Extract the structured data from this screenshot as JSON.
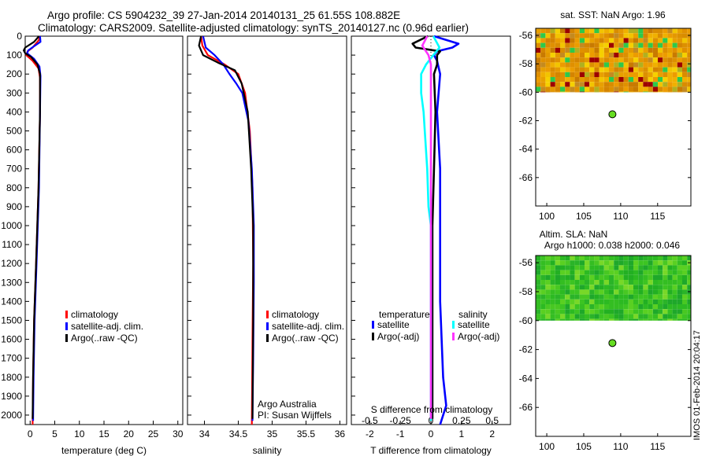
{
  "title_line1": "Argo profile: CS 5904232_39 27-Jan-2014 20140131_25 61.55S 108.882E",
  "title_line2": "Climatology: CARS2009. Satellite-adjusted climatology: synTS_20140127.nc (0.96d earlier)",
  "watermark": "IMOS 01-Feb-2014 20:04:17",
  "colors": {
    "climatology": "#ff0000",
    "satellite": "#0000ff",
    "argo": "#000000",
    "sal_satellite": "#00ffff",
    "sal_argo": "#ff33ff",
    "float_marker": "#66dd22"
  },
  "chart_data": [
    {
      "type": "line",
      "panel": "temperature",
      "xlabel": "temperature (deg C)",
      "xlim": [
        -1,
        31
      ],
      "xticks": [
        0,
        5,
        10,
        15,
        20,
        25,
        30
      ],
      "ylim": [
        0,
        2050
      ],
      "yticks": [
        0,
        100,
        200,
        300,
        400,
        500,
        600,
        700,
        800,
        900,
        1000,
        1100,
        1200,
        1300,
        1400,
        1500,
        1600,
        1700,
        1800,
        1900,
        2000
      ],
      "legend": [
        "climatology",
        "satellite-adj. clim.",
        "Argo(..raw -QC)"
      ],
      "series": [
        {
          "name": "climatology",
          "color": "#ff0000",
          "points": [
            [
              1.9,
              0
            ],
            [
              1.8,
              20
            ],
            [
              0.5,
              60
            ],
            [
              -0.5,
              80
            ],
            [
              -0.8,
              100
            ],
            [
              0.5,
              130
            ],
            [
              1.7,
              170
            ],
            [
              2.0,
              220
            ],
            [
              2.0,
              400
            ],
            [
              1.7,
              800
            ],
            [
              1.2,
              1200
            ],
            [
              0.8,
              1500
            ],
            [
              0.6,
              1800
            ],
            [
              0.5,
              2050
            ]
          ]
        },
        {
          "name": "satellite-adj. clim.",
          "color": "#0000ff",
          "points": [
            [
              2.0,
              0
            ],
            [
              2.1,
              30
            ],
            [
              0.4,
              60
            ],
            [
              -0.4,
              75
            ],
            [
              -0.6,
              90
            ],
            [
              0.8,
              120
            ],
            [
              1.9,
              160
            ],
            [
              2.1,
              210
            ],
            [
              2.0,
              400
            ],
            [
              1.8,
              800
            ],
            [
              1.3,
              1200
            ],
            [
              0.9,
              1500
            ],
            [
              0.7,
              1800
            ],
            [
              0.6,
              2030
            ]
          ]
        },
        {
          "name": "Argo(..raw -QC)",
          "color": "#000000",
          "points": [
            [
              1.8,
              0
            ],
            [
              0.8,
              30
            ],
            [
              -1.0,
              60
            ],
            [
              -1.3,
              75
            ],
            [
              -1.0,
              90
            ],
            [
              0.2,
              110
            ],
            [
              1.5,
              150
            ],
            [
              2.0,
              200
            ],
            [
              2.0,
              400
            ],
            [
              1.7,
              800
            ],
            [
              1.2,
              1200
            ],
            [
              0.8,
              1500
            ],
            [
              0.6,
              1800
            ],
            [
              0.5,
              2020
            ]
          ]
        }
      ]
    },
    {
      "type": "line",
      "panel": "salinity",
      "xlabel": "salinity",
      "xlim": [
        33.75,
        36.1
      ],
      "xticks": [
        34,
        34.5,
        35,
        35.5,
        36
      ],
      "ylim": [
        0,
        2050
      ],
      "legend": [
        "climatology",
        "satellite-adj. clim.",
        "Argo(..raw -QC)"
      ],
      "annotation": [
        "Argo Australia",
        "PI: Susan Wijffels"
      ],
      "series": [
        {
          "name": "climatology",
          "color": "#ff0000",
          "points": [
            [
              33.95,
              0
            ],
            [
              33.97,
              50
            ],
            [
              34.05,
              100
            ],
            [
              34.3,
              150
            ],
            [
              34.5,
              200
            ],
            [
              34.6,
              300
            ],
            [
              34.67,
              500
            ],
            [
              34.71,
              800
            ],
            [
              34.72,
              1200
            ],
            [
              34.71,
              1600
            ],
            [
              34.7,
              2050
            ]
          ]
        },
        {
          "name": "satellite-adj. clim.",
          "color": "#0000ff",
          "points": [
            [
              33.98,
              0
            ],
            [
              34.02,
              60
            ],
            [
              34.15,
              100
            ],
            [
              34.28,
              150
            ],
            [
              34.37,
              200
            ],
            [
              34.47,
              250
            ],
            [
              34.56,
              300
            ],
            [
              34.65,
              450
            ],
            [
              34.7,
              700
            ],
            [
              34.73,
              1000
            ],
            [
              34.73,
              1300
            ],
            [
              34.72,
              1700
            ],
            [
              34.71,
              2030
            ]
          ]
        },
        {
          "name": "Argo(..raw -QC)",
          "color": "#000000",
          "points": [
            [
              33.95,
              0
            ],
            [
              33.92,
              50
            ],
            [
              33.98,
              100
            ],
            [
              34.2,
              140
            ],
            [
              34.45,
              180
            ],
            [
              34.55,
              250
            ],
            [
              34.64,
              400
            ],
            [
              34.69,
              700
            ],
            [
              34.72,
              1000
            ],
            [
              34.72,
              1500
            ],
            [
              34.71,
              2020
            ]
          ]
        }
      ]
    },
    {
      "type": "line",
      "panel": "difference",
      "xlabel_bottom": "T difference from climatology",
      "xlabel_top": "S difference from climatology",
      "t_xlim": [
        -2.6,
        2.6
      ],
      "t_xticks": [
        -2,
        -1,
        0,
        1,
        2
      ],
      "s_xticks": [
        -0.5,
        -0.25,
        0,
        0.25,
        0.5
      ],
      "s_scale": 4,
      "ylim": [
        0,
        2050
      ],
      "legend_temperature_title": "temperature",
      "legend_salinity_title": "salinity",
      "legend_temperature": [
        "satellite",
        "Argo(-adj)"
      ],
      "legend_salinity": [
        "satellite",
        "Argo(-adj)"
      ],
      "series": [
        {
          "name": "T satellite",
          "color": "#0000ff",
          "points": [
            [
              0.1,
              0
            ],
            [
              0.9,
              40
            ],
            [
              0.7,
              60
            ],
            [
              0.2,
              80
            ],
            [
              0.1,
              100
            ],
            [
              0.2,
              130
            ],
            [
              0.3,
              200
            ],
            [
              0.2,
              400
            ],
            [
              0.3,
              700
            ],
            [
              0.3,
              1000
            ],
            [
              0.3,
              1400
            ],
            [
              0.4,
              1800
            ],
            [
              0.5,
              1950
            ],
            [
              0.3,
              2050
            ]
          ]
        },
        {
          "name": "T Argo(-adj)",
          "color": "#000000",
          "points": [
            [
              -0.1,
              0
            ],
            [
              -0.6,
              40
            ],
            [
              -0.5,
              60
            ],
            [
              0.3,
              80
            ],
            [
              0.2,
              100
            ],
            [
              0.2,
              150
            ],
            [
              0.1,
              200
            ],
            [
              0.15,
              400
            ],
            [
              0.1,
              700
            ],
            [
              0.05,
              1000
            ],
            [
              0.05,
              1400
            ],
            [
              0.05,
              1800
            ],
            [
              0.05,
              2020
            ]
          ]
        },
        {
          "name": "S satellite",
          "color": "#00ffff",
          "points": [
            [
              0.02,
              0
            ],
            [
              0.07,
              60
            ],
            [
              0.02,
              100
            ],
            [
              -0.04,
              150
            ],
            [
              -0.08,
              200
            ],
            [
              -0.08,
              300
            ],
            [
              -0.06,
              400
            ],
            [
              -0.05,
              500
            ],
            [
              -0.03,
              700
            ],
            [
              -0.02,
              900
            ],
            [
              0,
              1000
            ],
            [
              0,
              1400
            ],
            [
              0,
              1900
            ],
            [
              0,
              2030
            ]
          ]
        },
        {
          "name": "S Argo(-adj)",
          "color": "#ff33ff",
          "points": [
            [
              -0.03,
              0
            ],
            [
              -0.07,
              50
            ],
            [
              -0.05,
              70
            ],
            [
              -0.02,
              100
            ],
            [
              0,
              150
            ],
            [
              0,
              300
            ],
            [
              0,
              1000
            ],
            [
              0,
              1500
            ],
            [
              0,
              2020
            ]
          ]
        }
      ]
    },
    {
      "type": "heatmap",
      "panel": "sst_map",
      "title": "sat. SST: NaN Argo: 1.96",
      "xlim": [
        98.5,
        119.5
      ],
      "ylim": [
        -68,
        -55.5
      ],
      "xticks": [
        100,
        105,
        110,
        115
      ],
      "yticks": [
        -56,
        -58,
        -60,
        -62,
        -64,
        -66
      ],
      "float_position": [
        108.882,
        -61.55
      ]
    },
    {
      "type": "heatmap",
      "panel": "sla_map",
      "title_line1": "Altim. SLA: NaN",
      "title_line2": "Argo h1000: 0.038 h2000: 0.046",
      "xlim": [
        98.5,
        119.5
      ],
      "ylim": [
        -68,
        -55.5
      ],
      "xticks": [
        100,
        105,
        110,
        115
      ],
      "yticks": [
        -56,
        -58,
        -60,
        -62,
        -64,
        -66
      ],
      "float_position": [
        108.882,
        -61.55
      ]
    }
  ]
}
